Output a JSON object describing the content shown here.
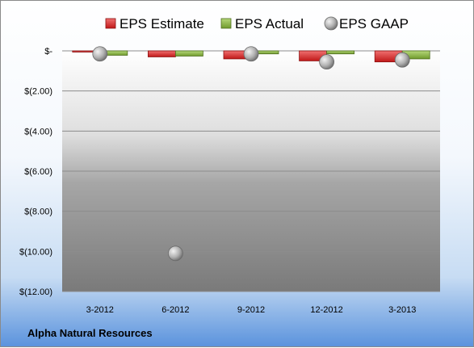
{
  "chart_data": {
    "type": "bar",
    "categories": [
      "3-2012",
      "6-2012",
      "9-2012",
      "12-2012",
      "3-2013"
    ],
    "series": [
      {
        "name": "EPS Estimate",
        "kind": "bar",
        "color": "#e03030",
        "values": [
          -0.03,
          -0.3,
          -0.4,
          -0.5,
          -0.55
        ]
      },
      {
        "name": "EPS Actual",
        "kind": "bar",
        "color": "#8cb541",
        "values": [
          -0.22,
          -0.26,
          -0.15,
          -0.15,
          -0.4
        ]
      },
      {
        "name": "EPS GAAP",
        "kind": "marker",
        "color": "#9a9a9a",
        "values": [
          -0.15,
          -10.1,
          -0.15,
          -0.55,
          -0.45
        ]
      }
    ],
    "ylim": [
      -12,
      0
    ],
    "yticks": [
      0,
      -2,
      -4,
      -6,
      -8,
      -10,
      -12
    ],
    "ytick_labels": [
      "$-",
      "$(2.00)",
      "$(4.00)",
      "$(6.00)",
      "$(8.00)",
      "$(10.00)",
      "$(12.00)"
    ],
    "grid": true,
    "legend_position": "top"
  },
  "company": "Alpha Natural Resources",
  "plot_background": "#a0a0a0"
}
